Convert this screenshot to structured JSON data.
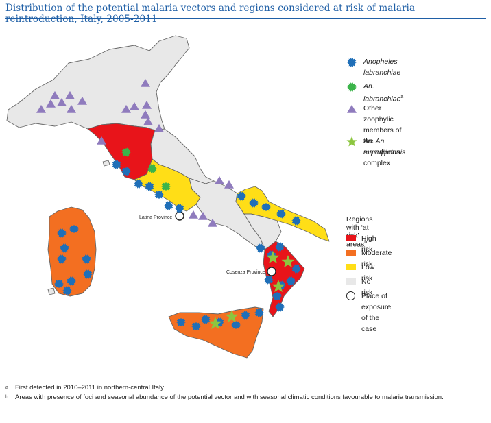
{
  "title": "Distribution of the potential malaria vectors and regions considered at risk of malaria reintroduction, Italy, 2005-2011",
  "colors": {
    "high": "#e8141a",
    "moderate": "#f36f21",
    "low": "#ffde17",
    "none": "#e8e8e8",
    "border": "#666666",
    "labranchiae": "#1f6fb8",
    "labranchiae_new": "#3bb44a",
    "zoophylic": "#8f7bbd",
    "superpictus": "#8cc63f"
  },
  "legend": {
    "vectors": [
      {
        "id": "labranchiae",
        "label": "Anopheles labranchiae",
        "icon": "blue-starburst-icon"
      },
      {
        "id": "labranchiae_new",
        "label": "An. labranchiae",
        "sup": "a",
        "icon": "green-starburst-icon"
      },
      {
        "id": "zoophylic",
        "label_line1": "Other zoophylic members of",
        "label_line2_pre": "the ",
        "label_line2_italic": "An. maculipennis",
        "label_line2_post": " complex",
        "icon": "purple-triangle-icon"
      },
      {
        "id": "superpictus",
        "label": "An. superpictus",
        "icon": "green-star-icon"
      }
    ],
    "risk_header": "Regions with ‘at risk’ areas",
    "risk_header_sup": "b",
    "risk": [
      {
        "id": "high",
        "label": "High risk"
      },
      {
        "id": "moderate",
        "label": "Moderate risk"
      },
      {
        "id": "low",
        "label": "Low risk"
      },
      {
        "id": "none",
        "label": "No risk"
      },
      {
        "id": "exposure",
        "label": "Place of exposure of the case"
      }
    ]
  },
  "places": [
    {
      "label": "Latina Province"
    },
    {
      "label": "Cosenza Province"
    }
  ],
  "footnotes": [
    {
      "mark": "a",
      "text": "First detected in 2010–2011 in northern-central Italy."
    },
    {
      "mark": "b",
      "text": "Areas with presence of foci and seasonal abundance of the potential vector and with seasonal climatic conditions favourable to malaria transmission."
    }
  ]
}
